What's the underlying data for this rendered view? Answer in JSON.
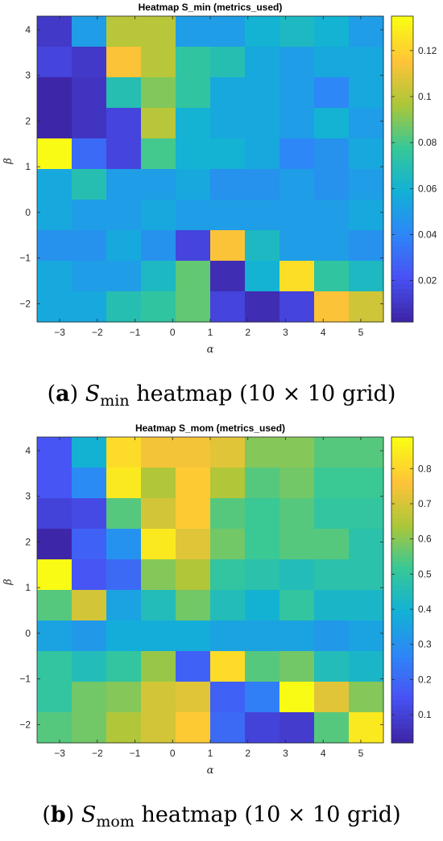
{
  "panels": [
    {
      "caption": {
        "letter": "a",
        "symbol": "S",
        "subscript": "min",
        "text": "heatmap (10 × 10 grid)"
      },
      "chart_data": {
        "type": "heatmap",
        "title": "Heatmap S_min (metrics_used)",
        "xlabel": "α",
        "ylabel": "β",
        "x": [
          -3,
          -2,
          -1,
          0,
          1,
          2,
          3,
          4,
          5
        ],
        "y": [
          -2,
          -1,
          0,
          1,
          2,
          3,
          4
        ],
        "grid": {
          "cols": 10,
          "rows": 10
        },
        "x_ticks": [
          -3,
          -2,
          -1,
          0,
          1,
          2,
          3,
          4,
          5
        ],
        "y_ticks": [
          -2,
          -1,
          0,
          1,
          2,
          3,
          4
        ],
        "x_tick_labels": [
          "−3",
          "−2",
          "−1",
          "0",
          "1",
          "2",
          "3",
          "4",
          "5"
        ],
        "y_tick_labels": [
          "−2",
          "−1",
          "0",
          "1",
          "2",
          "3",
          "4"
        ],
        "colorbar": {
          "min": 0.002,
          "max": 0.135,
          "ticks": [
            0.02,
            0.04,
            0.06,
            0.08,
            0.1,
            0.12
          ],
          "tick_labels": [
            "0.02",
            "0.04",
            "0.06",
            "0.08",
            "0.1",
            "0.12"
          ]
        },
        "values": [
          [
            0.01,
            0.05,
            0.1,
            0.1,
            0.05,
            0.05,
            0.06,
            0.065,
            0.06,
            0.05
          ],
          [
            0.015,
            0.01,
            0.115,
            0.1,
            0.075,
            0.07,
            0.055,
            0.05,
            0.055,
            0.055
          ],
          [
            0.002,
            0.008,
            0.07,
            0.09,
            0.075,
            0.055,
            0.055,
            0.05,
            0.04,
            0.055
          ],
          [
            0.002,
            0.008,
            0.015,
            0.1,
            0.06,
            0.055,
            0.055,
            0.05,
            0.06,
            0.05
          ],
          [
            0.135,
            0.03,
            0.015,
            0.08,
            0.06,
            0.06,
            0.055,
            0.04,
            0.045,
            0.055
          ],
          [
            0.055,
            0.07,
            0.05,
            0.05,
            0.055,
            0.045,
            0.045,
            0.05,
            0.045,
            0.05
          ],
          [
            0.055,
            0.05,
            0.05,
            0.055,
            0.05,
            0.05,
            0.05,
            0.05,
            0.05,
            0.055
          ],
          [
            0.045,
            0.045,
            0.055,
            0.045,
            0.015,
            0.115,
            0.065,
            0.05,
            0.05,
            0.045
          ],
          [
            0.055,
            0.05,
            0.05,
            0.065,
            0.085,
            0.005,
            0.06,
            0.125,
            0.075,
            0.065
          ],
          [
            0.055,
            0.055,
            0.07,
            0.075,
            0.085,
            0.015,
            0.005,
            0.015,
            0.115,
            0.105
          ]
        ]
      }
    },
    {
      "caption": {
        "letter": "b",
        "symbol": "S",
        "subscript": "mom",
        "text": "heatmap (10 × 10 grid)"
      },
      "chart_data": {
        "type": "heatmap",
        "title": "Heatmap S_mom (metrics_used)",
        "xlabel": "α",
        "ylabel": "β",
        "x": [
          -3,
          -2,
          -1,
          0,
          1,
          2,
          3,
          4,
          5
        ],
        "y": [
          -2,
          -1,
          0,
          1,
          2,
          3,
          4
        ],
        "grid": {
          "cols": 10,
          "rows": 10
        },
        "x_ticks": [
          -3,
          -2,
          -1,
          0,
          1,
          2,
          3,
          4,
          5
        ],
        "y_ticks": [
          -2,
          -1,
          0,
          1,
          2,
          3,
          4
        ],
        "x_tick_labels": [
          "−3",
          "−2",
          "−1",
          "0",
          "1",
          "2",
          "3",
          "4",
          "5"
        ],
        "y_tick_labels": [
          "−2",
          "−1",
          "0",
          "1",
          "2",
          "3",
          "4"
        ],
        "colorbar": {
          "min": 0.02,
          "max": 0.89,
          "ticks": [
            0.1,
            0.2,
            0.3,
            0.4,
            0.5,
            0.6,
            0.7,
            0.8
          ],
          "tick_labels": [
            "0.1",
            "0.2",
            "0.3",
            "0.4",
            "0.5",
            "0.6",
            "0.7",
            "0.8"
          ]
        },
        "values": [
          [
            0.15,
            0.4,
            0.82,
            0.75,
            0.75,
            0.72,
            0.6,
            0.6,
            0.55,
            0.55
          ],
          [
            0.15,
            0.28,
            0.85,
            0.65,
            0.78,
            0.65,
            0.55,
            0.58,
            0.52,
            0.52
          ],
          [
            0.1,
            0.12,
            0.55,
            0.7,
            0.78,
            0.55,
            0.52,
            0.55,
            0.5,
            0.5
          ],
          [
            0.02,
            0.18,
            0.3,
            0.85,
            0.72,
            0.58,
            0.52,
            0.55,
            0.55,
            0.48
          ],
          [
            0.89,
            0.15,
            0.2,
            0.6,
            0.65,
            0.5,
            0.48,
            0.45,
            0.48,
            0.48
          ],
          [
            0.55,
            0.7,
            0.35,
            0.45,
            0.58,
            0.45,
            0.4,
            0.5,
            0.42,
            0.42
          ],
          [
            0.35,
            0.32,
            0.38,
            0.38,
            0.38,
            0.35,
            0.35,
            0.35,
            0.32,
            0.35
          ],
          [
            0.5,
            0.45,
            0.5,
            0.62,
            0.18,
            0.82,
            0.55,
            0.58,
            0.45,
            0.42
          ],
          [
            0.5,
            0.58,
            0.6,
            0.7,
            0.72,
            0.18,
            0.25,
            0.89,
            0.72,
            0.6
          ],
          [
            0.55,
            0.58,
            0.65,
            0.7,
            0.78,
            0.2,
            0.1,
            0.08,
            0.55,
            0.85
          ]
        ]
      }
    }
  ]
}
